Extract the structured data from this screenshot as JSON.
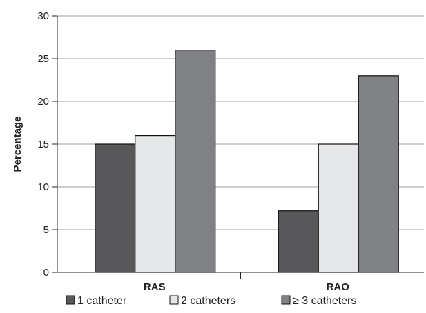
{
  "chart_data": {
    "type": "bar",
    "title": "",
    "xlabel": "",
    "ylabel": "Percentage",
    "ylim": [
      0,
      30
    ],
    "yticks": [
      0,
      5,
      10,
      15,
      20,
      25,
      30
    ],
    "grid": true,
    "legend_position": "bottom",
    "categories": [
      "RAS",
      "RAO"
    ],
    "series": [
      {
        "name": "1 catheter",
        "values": [
          15,
          7.2
        ],
        "color": "#58585a"
      },
      {
        "name": "2 catheters",
        "values": [
          16,
          15
        ],
        "color": "#e6e7e8"
      },
      {
        "name": "≥ 3 catheters",
        "values": [
          26,
          23
        ],
        "color": "#808184"
      }
    ]
  }
}
